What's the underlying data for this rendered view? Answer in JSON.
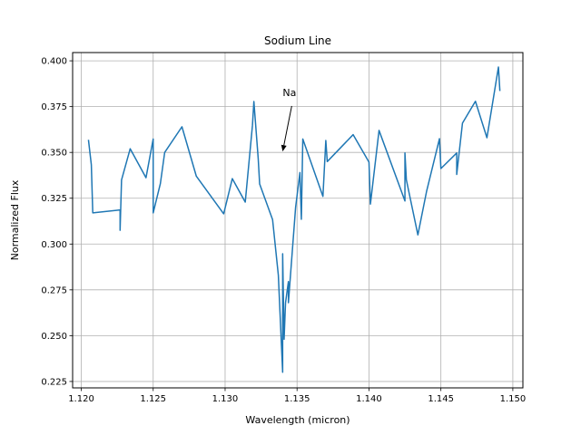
{
  "chart_data": {
    "type": "line",
    "title": "Sodium Line",
    "xlabel": "Wavelength (micron)",
    "ylabel": "Normalized Flux",
    "xlim": [
      1.1194,
      1.1507
    ],
    "ylim": [
      0.2215,
      0.4045
    ],
    "xticks": [
      1.12,
      1.125,
      1.13,
      1.135,
      1.14,
      1.145,
      1.15
    ],
    "xtick_labels": [
      "1.120",
      "1.125",
      "1.130",
      "1.135",
      "1.140",
      "1.145",
      "1.150"
    ],
    "yticks": [
      0.225,
      0.25,
      0.275,
      0.3,
      0.325,
      0.35,
      0.375,
      0.4
    ],
    "ytick_labels": [
      "0.225",
      "0.250",
      "0.275",
      "0.300",
      "0.325",
      "0.350",
      "0.375",
      "0.400"
    ],
    "grid": true,
    "color": "#1f77b4",
    "annotation": {
      "text": "Na",
      "text_at": [
        1.134,
        0.3808
      ],
      "arrow_to": [
        1.134,
        0.3505
      ]
    },
    "series": [
      {
        "x": [
          1.1205,
          1.1207,
          1.1208,
          1.1227,
          1.1227,
          1.1228,
          1.1234,
          1.1245,
          1.125,
          1.125,
          1.1255,
          1.1258,
          1.127,
          1.128,
          1.1299,
          1.1305,
          1.1314,
          1.1319,
          1.132,
          1.1323,
          1.1324,
          1.1333,
          1.1337,
          1.134,
          1.134,
          1.1341,
          1.1342,
          1.1344,
          1.1344,
          1.1349,
          1.1352,
          1.1353,
          1.1354,
          1.1368,
          1.137,
          1.1371,
          1.1389,
          1.14,
          1.1401,
          1.1407,
          1.1425,
          1.1425,
          1.1426,
          1.1434,
          1.144,
          1.1449,
          1.145,
          1.1461,
          1.1461,
          1.1465,
          1.1474,
          1.1482,
          1.149,
          1.1491
        ],
        "y": [
          0.3569,
          0.3433,
          0.317,
          0.3186,
          0.3075,
          0.335,
          0.352,
          0.3362,
          0.3573,
          0.317,
          0.333,
          0.35,
          0.364,
          0.337,
          0.3165,
          0.3357,
          0.3229,
          0.3647,
          0.3778,
          0.3467,
          0.3328,
          0.3133,
          0.283,
          0.23,
          0.2947,
          0.248,
          0.268,
          0.2795,
          0.268,
          0.32,
          0.339,
          0.3135,
          0.3573,
          0.326,
          0.3565,
          0.345,
          0.3597,
          0.3447,
          0.3218,
          0.362,
          0.3235,
          0.3497,
          0.335,
          0.305,
          0.3286,
          0.3575,
          0.3412,
          0.3497,
          0.338,
          0.366,
          0.3779,
          0.358,
          0.3966,
          0.3835
        ]
      }
    ]
  }
}
